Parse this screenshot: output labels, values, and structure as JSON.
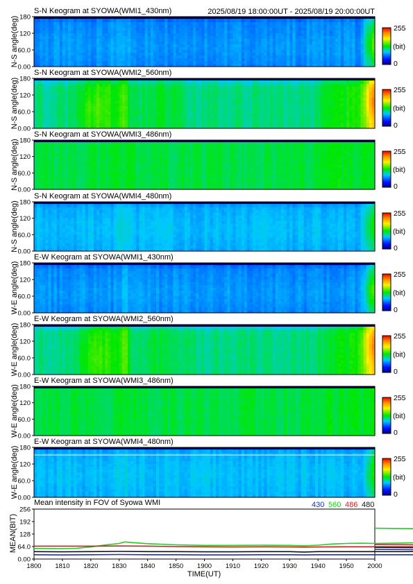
{
  "header_time_range": "2025/08/19 18:00:00UT - 2025/08/19 20:00:00UT",
  "colorbar": {
    "max_label": "255",
    "unit_label": "(bit)",
    "min_label": "0"
  },
  "keograms": [
    {
      "title": "S-N Keogram at SYOWA(WMI1_430nm)",
      "ylabel": "N-S angle(deg)",
      "ticks": [
        "180",
        "120",
        "60.0",
        "0.00"
      ],
      "base": 0.27,
      "variant": "sn1"
    },
    {
      "title": "S-N Keogram at SYOWA(WMI2_560nm)",
      "ylabel": "N-S angle(deg)",
      "ticks": [
        "180",
        "120",
        "60.0",
        "0.00"
      ],
      "base": 0.42,
      "variant": "sn2"
    },
    {
      "title": "S-N Keogram at SYOWA(WMI3_486nm)",
      "ylabel": "N-S angle(deg)",
      "ticks": [
        "180",
        "120",
        "60.0",
        "0.00"
      ],
      "base": 0.46,
      "variant": "sn3"
    },
    {
      "title": "S-N Keogram at SYOWA(WMI4_480nm)",
      "ylabel": "N-S angle(deg)",
      "ticks": [
        "180",
        "120",
        "60.0",
        "0.00"
      ],
      "base": 0.31,
      "variant": "sn4"
    },
    {
      "title": "E-W Keogram at SYOWA(WMI1_430nm)",
      "ylabel": "W-E angle(deg)",
      "ticks": [
        "180",
        "120",
        "60.0",
        "0.00"
      ],
      "base": 0.27,
      "variant": "ew1"
    },
    {
      "title": "E-W Keogram at SYOWA(WMI2_560nm)",
      "ylabel": "W-E angle(deg)",
      "ticks": [
        "180",
        "120",
        "60.0",
        "0.00"
      ],
      "base": 0.42,
      "variant": "ew2"
    },
    {
      "title": "E-W Keogram at SYOWA(WMI3_486nm)",
      "ylabel": "W-E angle(deg)",
      "ticks": [
        "180",
        "120",
        "60.0",
        "0.00"
      ],
      "base": 0.46,
      "variant": "ew3"
    },
    {
      "title": "E-W Keogram at SYOWA(WMI4_480nm)",
      "ylabel": "W-E angle(deg)",
      "ticks": [
        "180",
        "120",
        "60.0",
        "0.00"
      ],
      "base": 0.31,
      "variant": "ew4"
    }
  ],
  "chart_data": {
    "type": "line",
    "title": "Mean intensity in FOV of Syowa WMI",
    "xlabel": "TIME(UT)",
    "ylabel": "MEAN(BIT)",
    "xlim": [
      1800,
      2000
    ],
    "ylim": [
      0,
      256
    ],
    "x_ticks": [
      "1800",
      "1810",
      "1820",
      "1830",
      "1840",
      "1850",
      "1900",
      "1910",
      "1920",
      "1930",
      "1940",
      "1950",
      "2000"
    ],
    "y_ticks": [
      "256",
      "192",
      "128",
      "64.0",
      "0.00"
    ],
    "grid": false,
    "legend_placement": "top-right",
    "series": [
      {
        "name": "430",
        "color": "#1a2fb5",
        "x": [
          1800,
          1810,
          1820,
          1830,
          1840,
          1850,
          1900,
          1910,
          1920,
          1930,
          1935,
          1940,
          1950,
          1955,
          1960,
          1970,
          1980,
          1990,
          1995,
          1998,
          2000
        ],
        "values": [
          22,
          21,
          22,
          23,
          22,
          22,
          21,
          21,
          22,
          22,
          21,
          22,
          22,
          22,
          22,
          22,
          22,
          24,
          30,
          44,
          50
        ]
      },
      {
        "name": "560",
        "color": "#22cc22",
        "x": [
          1800,
          1810,
          1815,
          1820,
          1825,
          1830,
          1832,
          1835,
          1840,
          1850,
          1900,
          1910,
          1920,
          1930,
          1935,
          1940,
          1945,
          1950,
          1955,
          1960,
          1970,
          1980,
          1985,
          1990,
          1995,
          1998,
          2000
        ],
        "values": [
          54,
          53,
          55,
          62,
          72,
          80,
          88,
          84,
          79,
          73,
          70,
          70,
          71,
          70,
          68,
          71,
          77,
          80,
          81,
          80,
          82,
          85,
          90,
          96,
          128,
          152,
          158
        ]
      },
      {
        "name": "486",
        "color": "#cc1f1f",
        "x": [
          1800,
          1810,
          1820,
          1830,
          1840,
          1850,
          1900,
          1910,
          1920,
          1930,
          1935,
          1940,
          1950,
          1960,
          1970,
          1980,
          1990,
          1995,
          1998,
          2000
        ],
        "values": [
          66,
          66,
          66,
          67,
          66,
          64,
          63,
          62,
          63,
          62,
          61,
          62,
          63,
          63,
          63,
          63,
          64,
          66,
          72,
          74
        ]
      },
      {
        "name": "480",
        "color": "#111111",
        "x": [
          1800,
          1810,
          1820,
          1830,
          1840,
          1850,
          1900,
          1910,
          1920,
          1930,
          1935,
          1940,
          1950,
          1960,
          1970,
          1980,
          1990,
          1995,
          1998,
          2000
        ],
        "values": [
          38,
          37,
          38,
          39,
          38,
          38,
          37,
          37,
          38,
          38,
          36,
          38,
          38,
          38,
          38,
          39,
          42,
          47,
          56,
          60
        ]
      }
    ]
  }
}
